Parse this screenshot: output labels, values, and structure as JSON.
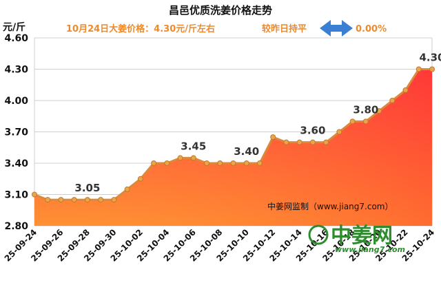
{
  "chart_data": {
    "type": "area",
    "title": "昌邑优质洗姜价格走势",
    "subtitle": "10月24日大姜价格：4.30元/斤左右",
    "change_text": "较昨日持平",
    "change_value": "0.00%",
    "ylabel": "元/斤",
    "ylim": [
      2.8,
      4.6
    ],
    "yticks": [
      "2.80",
      "3.10",
      "3.40",
      "3.70",
      "4.00",
      "4.30",
      "4.60"
    ],
    "x": [
      "25-09-24",
      "25-09-25",
      "25-09-26",
      "25-09-27",
      "25-09-28",
      "25-09-29",
      "25-09-30",
      "25-10-01",
      "25-10-02",
      "25-10-03",
      "25-10-04",
      "25-10-05",
      "25-10-06",
      "25-10-07",
      "25-10-08",
      "25-10-09",
      "25-10-10",
      "25-10-11",
      "25-10-12",
      "25-10-13",
      "25-10-14",
      "25-10-15",
      "25-10-16",
      "25-10-17",
      "25-10-18",
      "25-10-19",
      "25-10-20",
      "25-10-21",
      "25-10-22",
      "25-10-23",
      "25-10-24"
    ],
    "xtick_labels": [
      "25-09-24",
      "25-09-26",
      "25-09-28",
      "25-09-30",
      "25-10-02",
      "25-10-04",
      "25-10-06",
      "25-10-08",
      "25-10-10",
      "25-10-12",
      "25-10-14",
      "25-10-16",
      "25-10-18",
      "25-10-20",
      "25-10-22",
      "25-10-24"
    ],
    "values": [
      3.1,
      3.05,
      3.05,
      3.05,
      3.05,
      3.05,
      3.05,
      3.15,
      3.25,
      3.4,
      3.4,
      3.45,
      3.45,
      3.4,
      3.4,
      3.4,
      3.4,
      3.4,
      3.65,
      3.6,
      3.6,
      3.6,
      3.6,
      3.7,
      3.8,
      3.8,
      3.9,
      4.0,
      4.1,
      4.3,
      4.3
    ],
    "data_labels": [
      {
        "index": 4,
        "text": "3.05"
      },
      {
        "index": 12,
        "text": "3.45"
      },
      {
        "index": 16,
        "text": "3.40"
      },
      {
        "index": 21,
        "text": "3.60"
      },
      {
        "index": 25,
        "text": "3.80"
      },
      {
        "index": 30,
        "text": "4.30"
      }
    ],
    "grid": true,
    "colors": {
      "line": "#d98a3a",
      "fill_top": "#ff4a4a",
      "fill_bottom": "#ff8a3a",
      "marker": "#e8a64a",
      "subtitle": "#ec8a2e",
      "arrow": "#3b7fd4"
    }
  },
  "watermark": "中姜网监制（www.jiang7.com）",
  "logo": {
    "text": "中姜网",
    "url": "www.jiang7.com"
  }
}
